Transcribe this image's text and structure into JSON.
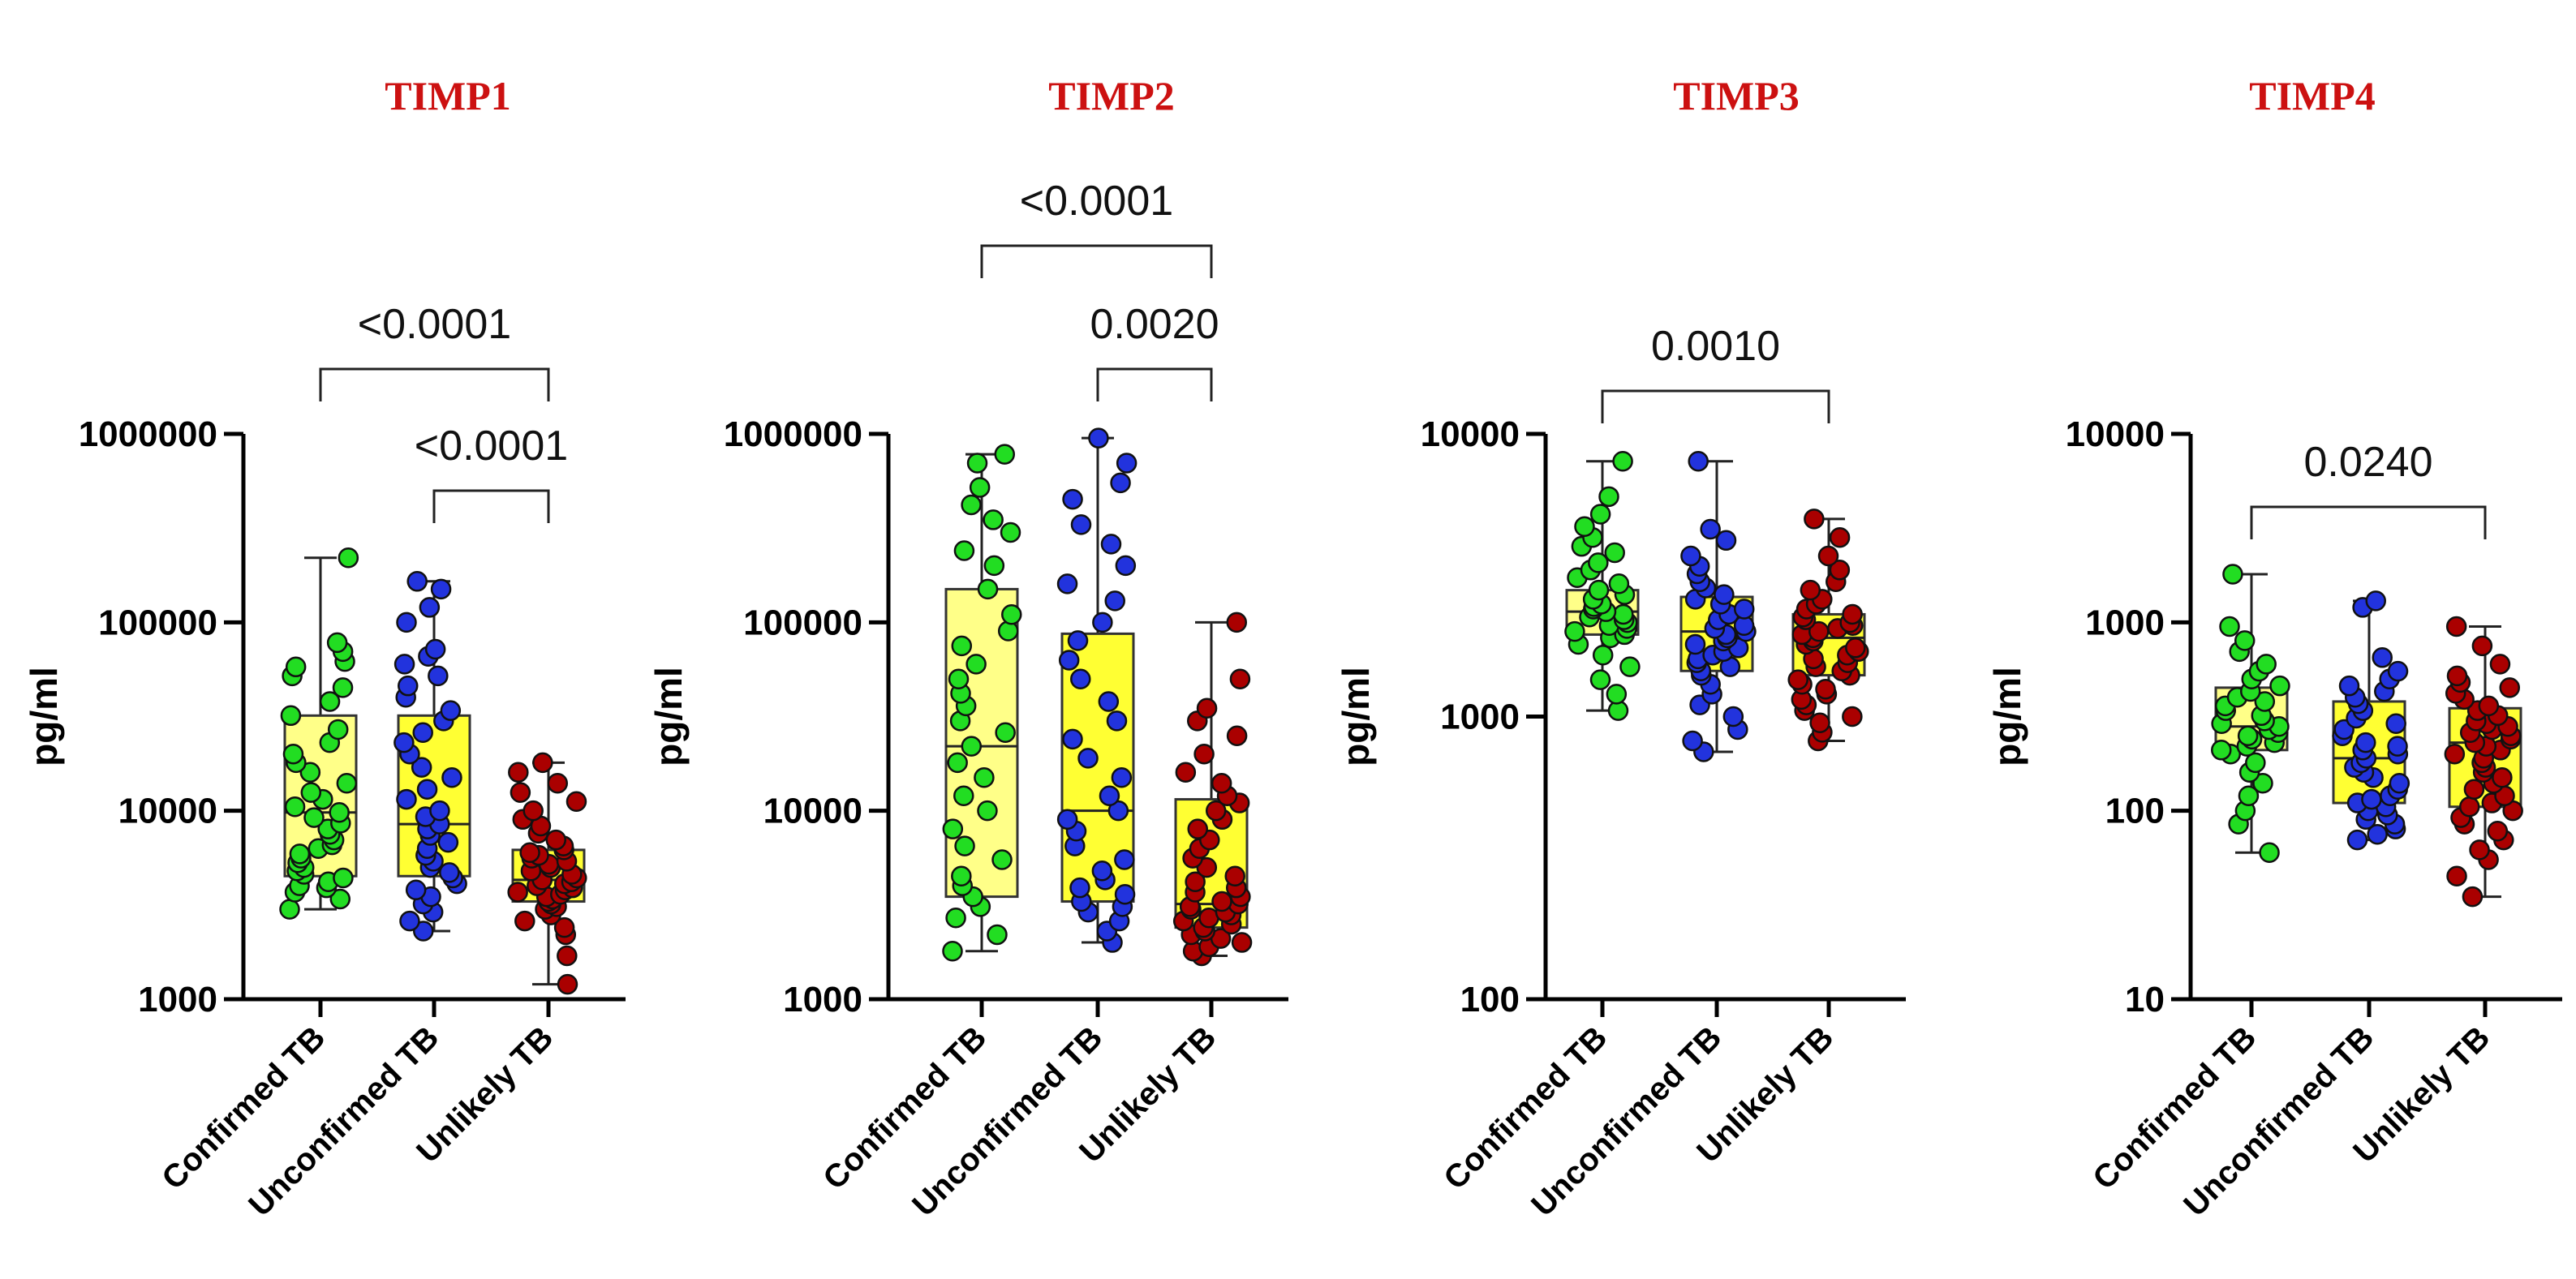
{
  "chart_data": [
    {
      "type": "box",
      "title": "TIMP1",
      "ylabel": "pg/ml",
      "yscale": "log",
      "ylim": [
        1000,
        1000000
      ],
      "yticks": [
        1000,
        10000,
        100000,
        1000000
      ],
      "ytick_labels": [
        "1000",
        "10000",
        "100000",
        "1000000"
      ],
      "categories": [
        "Confirmed TB",
        "Unconfirmed TB",
        "Unlikely TB"
      ],
      "boxes": [
        {
          "min": 3000,
          "q1": 4500,
          "median": 9800,
          "q3": 32000,
          "max": 220000
        },
        {
          "min": 2300,
          "q1": 4500,
          "median": 8500,
          "q3": 32000,
          "max": 165000
        },
        {
          "min": 1200,
          "q1": 3300,
          "median": 4300,
          "q3": 6200,
          "max": 18000
        }
      ],
      "points": [
        [
          3000,
          3400,
          3700,
          3900,
          4000,
          4200,
          4400,
          4600,
          4800,
          5000,
          5300,
          5600,
          5900,
          6300,
          6600,
          7000,
          7500,
          8000,
          8600,
          9200,
          9800,
          10500,
          11500,
          12500,
          14000,
          16000,
          18000,
          20000,
          23000,
          27000,
          32000,
          38000,
          45000,
          52000,
          58000,
          62000,
          70000,
          78000,
          220000
        ],
        [
          2300,
          2600,
          2900,
          3200,
          3500,
          3800,
          4100,
          4400,
          4700,
          5000,
          5400,
          5800,
          6300,
          6800,
          7400,
          8000,
          8500,
          9300,
          10000,
          11500,
          13000,
          15000,
          17000,
          20000,
          23000,
          26000,
          30000,
          34000,
          40000,
          46000,
          52000,
          60000,
          66000,
          72000,
          100000,
          120000,
          150000,
          165000
        ],
        [
          1200,
          1700,
          2200,
          2400,
          2600,
          2800,
          3000,
          3100,
          3200,
          3300,
          3400,
          3500,
          3600,
          3700,
          3800,
          3900,
          4000,
          4100,
          4200,
          4300,
          4400,
          4600,
          4800,
          5000,
          5200,
          5400,
          5600,
          5800,
          6000,
          6200,
          6500,
          7000,
          7600,
          8300,
          9000,
          10000,
          11200,
          12500,
          14000,
          16000,
          18000
        ]
      ],
      "colors": [
        "#22dd22",
        "#2233dd",
        "#aa0000"
      ],
      "comparisons": [
        {
          "from": 0,
          "to": 2,
          "label": "<0.0001"
        },
        {
          "from": 1,
          "to": 2,
          "label": "<0.0001"
        }
      ]
    },
    {
      "type": "box",
      "title": "TIMP2",
      "ylabel": "pg/ml",
      "yscale": "log",
      "ylim": [
        1000,
        1000000
      ],
      "yticks": [
        1000,
        10000,
        100000,
        1000000
      ],
      "ytick_labels": [
        "1000",
        "10000",
        "100000",
        "1000000"
      ],
      "categories": [
        "Confirmed TB",
        "Unconfirmed TB",
        "Unlikely TB"
      ],
      "boxes": [
        {
          "min": 1800,
          "q1": 3500,
          "median": 22000,
          "q3": 150000,
          "max": 780000
        },
        {
          "min": 2000,
          "q1": 3300,
          "median": 10000,
          "q3": 87000,
          "max": 950000
        },
        {
          "min": 1700,
          "q1": 2400,
          "median": 3200,
          "q3": 11500,
          "max": 100000
        }
      ],
      "points": [
        [
          1800,
          2200,
          2700,
          3100,
          3500,
          4000,
          4500,
          5500,
          6500,
          8000,
          10000,
          12000,
          15000,
          18000,
          22000,
          26000,
          30000,
          36000,
          42000,
          50000,
          60000,
          75000,
          90000,
          110000,
          150000,
          200000,
          240000,
          300000,
          350000,
          420000,
          520000,
          700000,
          780000
        ],
        [
          2000,
          2300,
          2600,
          2900,
          3100,
          3300,
          3600,
          3900,
          4300,
          4800,
          5500,
          6500,
          7800,
          9000,
          10000,
          12000,
          15000,
          19000,
          24000,
          30000,
          38000,
          50000,
          63000,
          80000,
          100000,
          130000,
          160000,
          200000,
          260000,
          330000,
          450000,
          550000,
          700000,
          950000
        ],
        [
          1700,
          1800,
          1900,
          2000,
          2100,
          2200,
          2300,
          2400,
          2500,
          2600,
          2700,
          2800,
          2900,
          3000,
          3100,
          3200,
          3300,
          3500,
          3700,
          3900,
          4200,
          4500,
          5000,
          5600,
          6300,
          7000,
          8000,
          9000,
          10000,
          11000,
          12000,
          14000,
          16000,
          20000,
          25000,
          30000,
          35000,
          50000,
          100000
        ]
      ],
      "colors": [
        "#22dd22",
        "#2233dd",
        "#aa0000"
      ],
      "comparisons": [
        {
          "from": 0,
          "to": 2,
          "label": "<0.0001"
        },
        {
          "from": 1,
          "to": 2,
          "label": "0.0020"
        }
      ]
    },
    {
      "type": "box",
      "title": "TIMP3",
      "ylabel": "pg/ml",
      "yscale": "log",
      "ylim": [
        100,
        10000
      ],
      "yticks": [
        100,
        1000,
        10000
      ],
      "ytick_labels": [
        "100",
        "1000",
        "10000"
      ],
      "categories": [
        "Confirmed TB",
        "Unconfirmed TB",
        "Unlikely TB"
      ],
      "boxes": [
        {
          "min": 1050,
          "q1": 1950,
          "median": 2350,
          "q3": 2800,
          "max": 8000
        },
        {
          "min": 750,
          "q1": 1450,
          "median": 2000,
          "q3": 2650,
          "max": 8000
        },
        {
          "min": 820,
          "q1": 1400,
          "median": 1900,
          "q3": 2300,
          "max": 5000
        }
      ],
      "points": [
        [
          1050,
          1200,
          1350,
          1500,
          1650,
          1800,
          1900,
          1950,
          2000,
          2050,
          2100,
          2150,
          2200,
          2250,
          2300,
          2350,
          2400,
          2450,
          2500,
          2600,
          2700,
          2800,
          2950,
          3100,
          3300,
          3500,
          3800,
          4000,
          4300,
          4700,
          5200,
          6000,
          8000
        ],
        [
          750,
          820,
          900,
          1000,
          1100,
          1200,
          1300,
          1400,
          1450,
          1500,
          1550,
          1600,
          1650,
          1700,
          1750,
          1800,
          1850,
          1900,
          1950,
          2000,
          2050,
          2100,
          2200,
          2300,
          2400,
          2500,
          2600,
          2700,
          2850,
          3000,
          3200,
          3400,
          3700,
          4200,
          4600,
          8000
        ],
        [
          820,
          880,
          950,
          1000,
          1050,
          1100,
          1150,
          1200,
          1250,
          1300,
          1350,
          1400,
          1450,
          1500,
          1550,
          1600,
          1650,
          1700,
          1750,
          1800,
          1850,
          1900,
          1950,
          2000,
          2050,
          2100,
          2150,
          2200,
          2250,
          2300,
          2400,
          2500,
          2600,
          2800,
          3000,
          3300,
          3700,
          4300,
          5000
        ]
      ],
      "colors": [
        "#22dd22",
        "#2233dd",
        "#aa0000"
      ],
      "comparisons": [
        {
          "from": 0,
          "to": 2,
          "label": "0.0010"
        }
      ]
    },
    {
      "type": "box",
      "title": "TIMP4",
      "ylabel": "pg/ml",
      "yscale": "log",
      "ylim": [
        10,
        10000
      ],
      "yticks": [
        10,
        100,
        1000,
        10000
      ],
      "ytick_labels": [
        "10",
        "100",
        "1000",
        "10000"
      ],
      "categories": [
        "Confirmed TB",
        "Unconfirmed TB",
        "Unlikely TB"
      ],
      "boxes": [
        {
          "min": 60,
          "q1": 210,
          "median": 280,
          "q3": 450,
          "max": 1800
        },
        {
          "min": 70,
          "q1": 110,
          "median": 190,
          "q3": 380,
          "max": 1300
        },
        {
          "min": 35,
          "q1": 105,
          "median": 230,
          "q3": 350,
          "max": 950
        }
      ],
      "points": [
        [
          60,
          85,
          100,
          120,
          140,
          160,
          180,
          200,
          210,
          220,
          230,
          240,
          250,
          260,
          270,
          280,
          290,
          300,
          320,
          340,
          360,
          380,
          400,
          430,
          460,
          500,
          550,
          600,
          700,
          800,
          950,
          1800
        ],
        [
          70,
          75,
          80,
          85,
          90,
          95,
          100,
          105,
          110,
          115,
          120,
          130,
          140,
          150,
          160,
          170,
          180,
          190,
          200,
          210,
          220,
          230,
          250,
          270,
          290,
          310,
          340,
          370,
          400,
          430,
          460,
          500,
          550,
          650,
          1200,
          1300
        ],
        [
          35,
          45,
          55,
          62,
          70,
          78,
          85,
          92,
          100,
          105,
          110,
          120,
          130,
          140,
          150,
          160,
          170,
          180,
          190,
          200,
          210,
          220,
          230,
          240,
          250,
          260,
          270,
          280,
          290,
          300,
          320,
          340,
          360,
          390,
          420,
          450,
          480,
          520,
          600,
          750,
          950
        ]
      ],
      "colors": [
        "#22dd22",
        "#2233dd",
        "#aa0000"
      ],
      "comparisons": [
        {
          "from": 0,
          "to": 2,
          "label": "0.0240"
        }
      ]
    }
  ],
  "style": {
    "title_color": "#cc1111",
    "box_fill": "#ffff33",
    "box_fill_light": "#ffff88",
    "axis_color": "#000000",
    "point_stroke": "#111111"
  }
}
